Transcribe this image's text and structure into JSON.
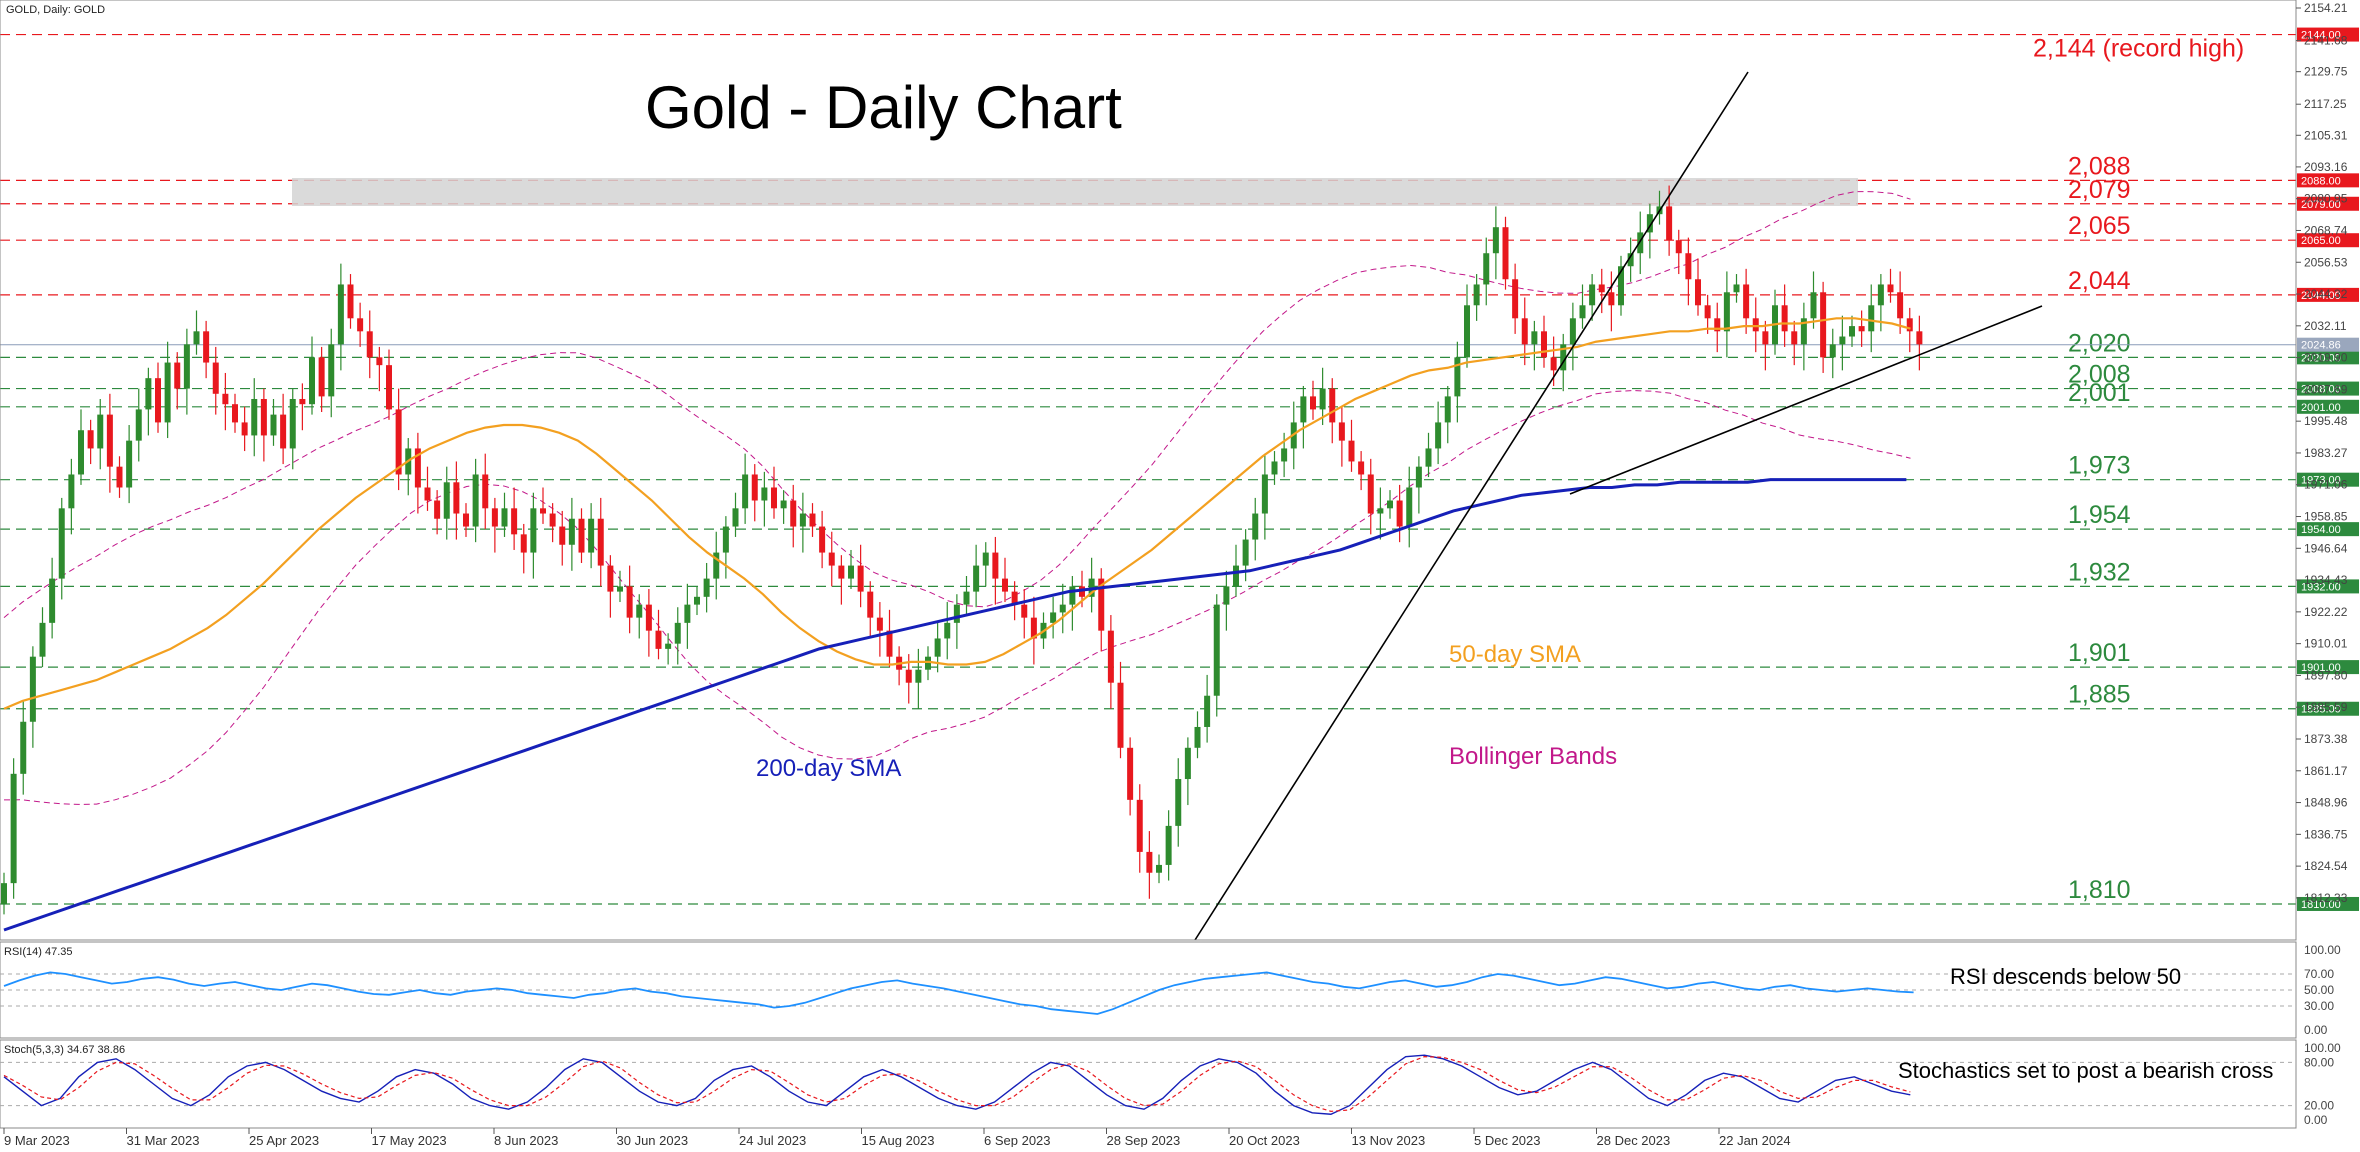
{
  "header": {
    "symbol_label": "GOLD, Daily:  GOLD"
  },
  "chart_data": {
    "type": "candlestick",
    "title": "Gold - Daily Chart",
    "ylim": [
      1800,
      2154.21
    ],
    "y_ticks": [
      "2154.21",
      "2141.68",
      "2129.75",
      "2117.25",
      "2105.31",
      "2093.16",
      "2080.95",
      "2068.74",
      "2056.53",
      "2044.32",
      "2032.11",
      "2019.90",
      "2007.69",
      "1995.48",
      "1983.27",
      "1971.06",
      "1958.85",
      "1946.64",
      "1934.43",
      "1922.22",
      "1910.01",
      "1897.80",
      "1885.59",
      "1873.38",
      "1861.17",
      "1848.96",
      "1836.75",
      "1824.54",
      "1812.33"
    ],
    "x_ticks": [
      "9 Mar 2023",
      "31 Mar 2023",
      "25 Apr 2023",
      "17 May 2023",
      "8 Jun 2023",
      "30 Jun 2023",
      "24 Jul 2023",
      "15 Aug 2023",
      "6 Sep 2023",
      "28 Sep 2023",
      "20 Oct 2023",
      "13 Nov 2023",
      "5 Dec 2023",
      "28 Dec 2023",
      "22 Jan 2024"
    ],
    "current_price": "2024.86",
    "levels": [
      {
        "value": 2144,
        "tag": "2144.00",
        "label": "2,144 (record high)",
        "color": "#e8181e"
      },
      {
        "value": 2088,
        "tag": "2088.00",
        "label": "2,088",
        "color": "#e8181e"
      },
      {
        "value": 2079,
        "tag": "2079.00",
        "label": "2,079",
        "color": "#e8181e"
      },
      {
        "value": 2065,
        "tag": "2065.00",
        "label": "2,065",
        "color": "#e8181e"
      },
      {
        "value": 2044,
        "tag": "2044.00",
        "label": "2,044",
        "color": "#e8181e"
      },
      {
        "value": 2020,
        "tag": "2020.00",
        "label": "2,020",
        "color": "#2d8a3e"
      },
      {
        "value": 2008,
        "tag": "2008.00",
        "label": "2,008",
        "color": "#2d8a3e"
      },
      {
        "value": 2001,
        "tag": "2001.00",
        "label": "2,001",
        "color": "#2d8a3e"
      },
      {
        "value": 1973,
        "tag": "1973.00",
        "label": "1,973",
        "color": "#2d8a3e"
      },
      {
        "value": 1954,
        "tag": "1954.00",
        "label": "1,954",
        "color": "#2d8a3e"
      },
      {
        "value": 1932,
        "tag": "1932.00",
        "label": "1,932",
        "color": "#2d8a3e"
      },
      {
        "value": 1901,
        "tag": "1901.00",
        "label": "1,901",
        "color": "#2d8a3e"
      },
      {
        "value": 1885,
        "tag": "1885.00",
        "label": "1,885",
        "color": "#2d8a3e"
      },
      {
        "value": 1810,
        "tag": "1810.00",
        "label": "1,810",
        "color": "#2d8a3e"
      }
    ],
    "series": {
      "close": [
        1818,
        1860,
        1880,
        1905,
        1918,
        1935,
        1962,
        1975,
        1992,
        1985,
        1998,
        1978,
        1970,
        1988,
        2000,
        2012,
        1995,
        2018,
        2008,
        2025,
        2030,
        2018,
        2006,
        2002,
        1995,
        1990,
        2004,
        1990,
        1998,
        1985,
        2004,
        2002,
        2020,
        2005,
        2025,
        2048,
        2035,
        2030,
        2020,
        2017,
        2000,
        1975,
        1985,
        1970,
        1965,
        1958,
        1972,
        1960,
        1955,
        1975,
        1962,
        1955,
        1962,
        1952,
        1945,
        1962,
        1960,
        1955,
        1948,
        1958,
        1945,
        1958,
        1940,
        1930,
        1932,
        1920,
        1925,
        1915,
        1908,
        1910,
        1918,
        1925,
        1928,
        1935,
        1945,
        1955,
        1962,
        1975,
        1965,
        1970,
        1962,
        1965,
        1955,
        1960,
        1955,
        1945,
        1940,
        1935,
        1940,
        1930,
        1920,
        1915,
        1905,
        1900,
        1895,
        1900,
        1905,
        1912,
        1918,
        1925,
        1930,
        1940,
        1945,
        1935,
        1930,
        1925,
        1920,
        1912,
        1918,
        1922,
        1925,
        1932,
        1928,
        1935,
        1915,
        1895,
        1870,
        1850,
        1830,
        1822,
        1825,
        1840,
        1858,
        1870,
        1878,
        1890,
        1925,
        1932,
        1940,
        1950,
        1960,
        1975,
        1980,
        1985,
        1995,
        2005,
        2000,
        2008,
        1995,
        1988,
        1980,
        1975,
        1960,
        1962,
        1965,
        1955,
        1970,
        1978,
        1985,
        1995,
        2005,
        2020,
        2040,
        2048,
        2060,
        2070,
        2050,
        2035,
        2025,
        2030,
        2020,
        2015,
        2025,
        2035,
        2040,
        2048,
        2045,
        2040,
        2055,
        2060,
        2068,
        2075,
        2078,
        2065,
        2060,
        2050,
        2040,
        2035,
        2030,
        2045,
        2048,
        2035,
        2030,
        2025,
        2040,
        2030,
        2025,
        2035,
        2045,
        2020,
        2025,
        2028,
        2032,
        2030,
        2040,
        2048,
        2045,
        2035,
        2030,
        2025
      ],
      "sma50": [
        1885,
        1888,
        1890,
        1892,
        1894,
        1896,
        1899,
        1902,
        1905,
        1908,
        1912,
        1916,
        1921,
        1927,
        1933,
        1940,
        1947,
        1954,
        1960,
        1966,
        1971,
        1976,
        1981,
        1985,
        1988,
        1991,
        1993,
        1994,
        1994,
        1993,
        1991,
        1988,
        1983,
        1977,
        1971,
        1965,
        1958,
        1951,
        1945,
        1940,
        1935,
        1929,
        1922,
        1916,
        1911,
        1907,
        1904,
        1902,
        1902,
        1903,
        1903,
        1902,
        1902,
        1903,
        1906,
        1910,
        1914,
        1919,
        1925,
        1931,
        1936,
        1941,
        1946,
        1952,
        1958,
        1964,
        1970,
        1976,
        1982,
        1987,
        1992,
        1996,
        2000,
        2004,
        2007,
        2010,
        2013,
        2015,
        2016,
        2018,
        2019,
        2020,
        2021,
        2022,
        2023,
        2024,
        2026,
        2027,
        2028,
        2029,
        2030,
        2030,
        2031,
        2031,
        2032,
        2032,
        2033,
        2033,
        2034,
        2035,
        2035,
        2034,
        2033,
        2031
      ],
      "sma50_start_index": 96,
      "sma200": [
        1800,
        1803,
        1806,
        1809,
        1812,
        1815,
        1818,
        1821,
        1824,
        1827,
        1830,
        1833,
        1836,
        1839,
        1842,
        1845,
        1848,
        1851,
        1854,
        1857,
        1860,
        1863,
        1866,
        1869,
        1872,
        1875,
        1878,
        1881,
        1884,
        1887,
        1890,
        1893,
        1896,
        1899,
        1902,
        1905,
        1908,
        1910,
        1912,
        1914,
        1916,
        1918,
        1920,
        1922,
        1924,
        1926,
        1928,
        1930,
        1931,
        1932,
        1933,
        1934,
        1935,
        1936,
        1937,
        1938,
        1940,
        1942,
        1944,
        1946,
        1949,
        1952,
        1955,
        1958,
        1961,
        1963,
        1965,
        1967,
        1968,
        1969,
        1970,
        1970,
        1971,
        1971,
        1972,
        1972,
        1972,
        1972,
        1973,
        1973,
        1973,
        1973,
        1973,
        1973,
        1973
      ],
      "sma200_start_index": 113
    },
    "annotations": {
      "sma50": "50-day SMA",
      "sma200": "200-day SMA",
      "bollinger": "Bollinger Bands"
    },
    "indicators": {
      "rsi": {
        "label": "RSI(14) 47.35",
        "note": "RSI descends below 50",
        "ticks": [
          "100.00",
          "70.00",
          "50.00",
          "30.00",
          "0.00"
        ],
        "values": [
          55,
          62,
          68,
          72,
          70,
          66,
          62,
          58,
          60,
          64,
          66,
          63,
          58,
          55,
          58,
          60,
          56,
          52,
          50,
          54,
          58,
          56,
          52,
          48,
          45,
          44,
          47,
          50,
          46,
          44,
          48,
          50,
          52,
          50,
          46,
          44,
          42,
          40,
          44,
          46,
          50,
          52,
          48,
          46,
          42,
          40,
          38,
          36,
          34,
          32,
          28,
          30,
          34,
          40,
          46,
          52,
          56,
          60,
          62,
          58,
          55,
          52,
          48,
          44,
          40,
          36,
          32,
          30,
          26,
          24,
          22,
          20,
          26,
          34,
          42,
          50,
          56,
          60,
          64,
          66,
          68,
          70,
          72,
          68,
          64,
          60,
          58,
          54,
          52,
          56,
          60,
          62,
          58,
          54,
          56,
          60,
          66,
          70,
          68,
          64,
          60,
          56,
          58,
          62,
          66,
          64,
          60,
          56,
          52,
          54,
          58,
          60,
          56,
          52,
          50,
          54,
          56,
          52,
          50,
          48,
          50,
          52,
          50,
          48,
          47
        ]
      },
      "stoch": {
        "label": "Stoch(5,3,3) 34.67 38.86",
        "note": "Stochastics set to post a bearish cross",
        "ticks": [
          "100.00",
          "80.00",
          "20.00",
          "0.00"
        ],
        "main": [
          60,
          40,
          20,
          30,
          60,
          80,
          85,
          70,
          50,
          30,
          20,
          35,
          60,
          75,
          80,
          70,
          55,
          40,
          30,
          25,
          40,
          60,
          70,
          65,
          50,
          30,
          20,
          15,
          25,
          45,
          70,
          85,
          80,
          60,
          40,
          25,
          20,
          30,
          55,
          70,
          75,
          60,
          40,
          25,
          20,
          40,
          60,
          70,
          60,
          45,
          30,
          20,
          15,
          25,
          45,
          65,
          80,
          75,
          55,
          35,
          20,
          15,
          30,
          55,
          75,
          85,
          80,
          65,
          40,
          20,
          10,
          8,
          20,
          45,
          70,
          88,
          90,
          85,
          75,
          60,
          45,
          35,
          40,
          55,
          70,
          80,
          70,
          50,
          30,
          20,
          35,
          55,
          65,
          60,
          45,
          30,
          25,
          40,
          55,
          60,
          50,
          40,
          35
        ],
        "signal": [
          62,
          48,
          32,
          28,
          45,
          68,
          80,
          78,
          62,
          44,
          28,
          28,
          45,
          65,
          76,
          75,
          64,
          50,
          38,
          30,
          32,
          48,
          62,
          66,
          58,
          42,
          28,
          20,
          20,
          32,
          52,
          74,
          82,
          72,
          52,
          35,
          24,
          25,
          40,
          58,
          70,
          68,
          52,
          35,
          25,
          30,
          48,
          62,
          64,
          54,
          40,
          28,
          20,
          20,
          32,
          52,
          70,
          78,
          68,
          48,
          30,
          20,
          22,
          40,
          62,
          78,
          82,
          74,
          55,
          35,
          20,
          12,
          14,
          32,
          55,
          78,
          88,
          87,
          80,
          70,
          55,
          42,
          38,
          46,
          60,
          74,
          74,
          60,
          42,
          28,
          28,
          42,
          58,
          62,
          55,
          40,
          30,
          32,
          45,
          55,
          55,
          46,
          39
        ]
      }
    }
  }
}
